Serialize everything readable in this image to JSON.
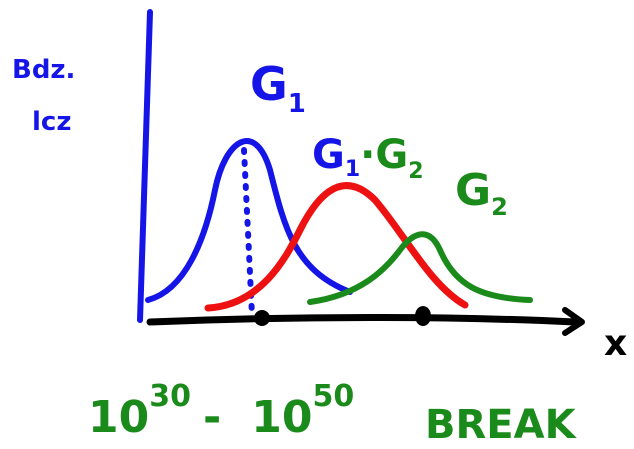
{
  "y_axis_label": [
    "Bdz.",
    "lcz"
  ],
  "x_axis_label": "x",
  "curve_labels": [
    {
      "main": "G",
      "sub": "1"
    },
    {
      "main": "G",
      "sub": "1",
      "joiner": "·G",
      "sub2": "2"
    },
    {
      "main": "G",
      "sub": "2"
    }
  ],
  "range": {
    "from_base": "10",
    "from_exp": "30",
    "dash": "-",
    "to_base": "10",
    "to_exp": "50"
  },
  "break_label": "BREAK"
}
